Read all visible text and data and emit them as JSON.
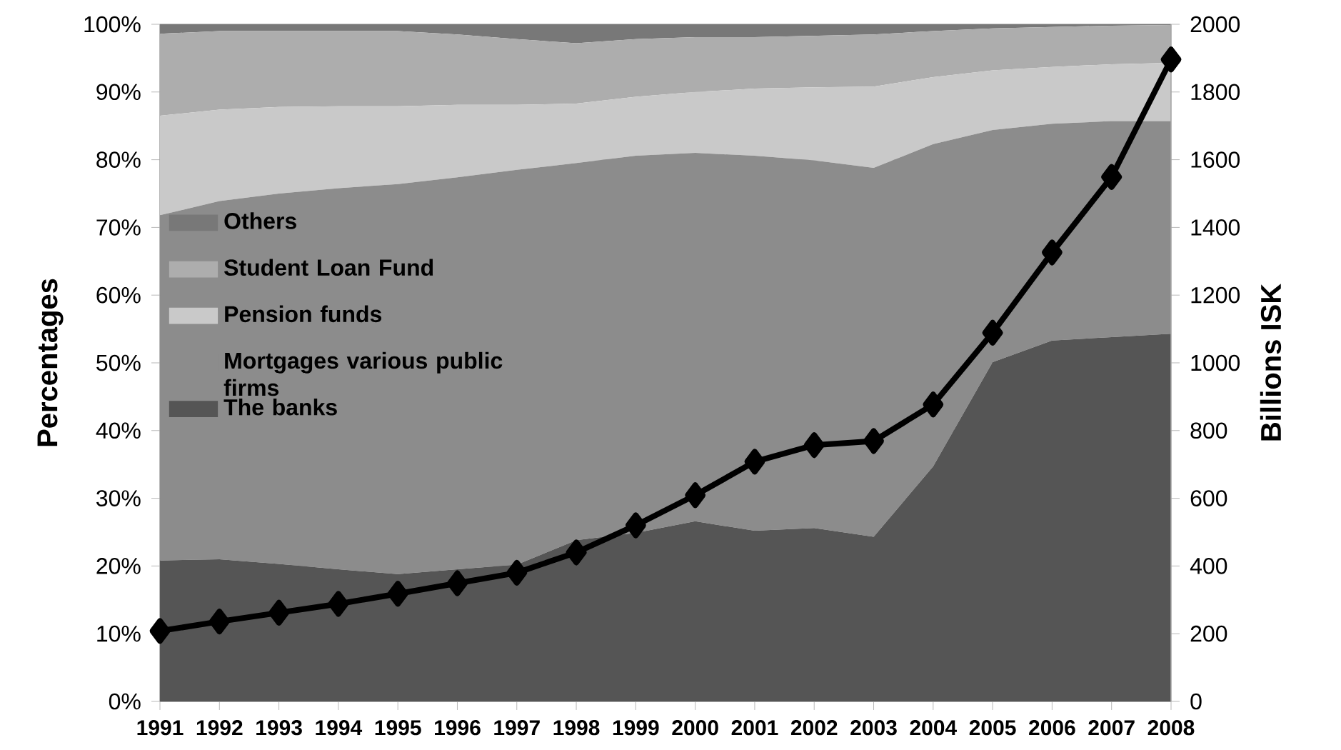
{
  "chart_data": {
    "type": "area",
    "stacked": true,
    "ylabel": "Percentages",
    "y2label": "Billions ISK",
    "categories": [
      "1991",
      "1992",
      "1993",
      "1994",
      "1995",
      "1996",
      "1997",
      "1998",
      "1999",
      "2000",
      "2001",
      "2002",
      "2003",
      "2004",
      "2005",
      "2006",
      "2007",
      "2008"
    ],
    "series": [
      {
        "name": "The banks",
        "color": "#555555",
        "values": [
          20.8,
          21.0,
          20.3,
          19.5,
          18.8,
          19.5,
          20.2,
          23.8,
          24.9,
          26.6,
          25.2,
          25.6,
          24.3,
          34.7,
          50.1,
          53.3,
          53.8,
          54.3
        ]
      },
      {
        "name": "Mortgages various public firms",
        "color": "#8c8c8c",
        "values": [
          51.0,
          52.9,
          54.7,
          56.3,
          57.6,
          57.9,
          58.3,
          55.7,
          55.7,
          54.4,
          55.4,
          54.3,
          54.5,
          47.6,
          34.3,
          32.0,
          31.9,
          31.4
        ]
      },
      {
        "name": "Pension funds",
        "color": "#c9c9c9",
        "values": [
          14.7,
          13.5,
          12.8,
          12.1,
          11.5,
          10.7,
          9.6,
          8.8,
          8.7,
          9.0,
          9.9,
          10.8,
          12.0,
          9.9,
          8.8,
          8.4,
          8.4,
          8.6
        ]
      },
      {
        "name": "Student Loan Fund",
        "color": "#adadad",
        "values": [
          12.1,
          11.6,
          11.2,
          11.1,
          11.1,
          10.4,
          9.7,
          8.9,
          8.5,
          8.1,
          7.6,
          7.6,
          7.7,
          6.8,
          6.2,
          5.9,
          5.7,
          5.6
        ]
      },
      {
        "name": "Others",
        "color": "#787878",
        "values": [
          1.4,
          1.0,
          1.0,
          1.0,
          1.0,
          1.5,
          2.2,
          2.8,
          2.2,
          1.9,
          1.9,
          1.7,
          1.5,
          1.0,
          0.6,
          0.4,
          0.2,
          0.1
        ]
      },
      {
        "type": "line",
        "axis": "y2",
        "color": "#000000",
        "marker": "diamond",
        "line_style": "solid",
        "values": [
          208,
          236,
          262,
          288,
          318,
          349,
          380,
          440,
          520,
          609,
          708,
          757,
          769,
          877,
          1089,
          1326,
          1549,
          1896
        ]
      }
    ],
    "ylim": [
      0,
      100
    ],
    "yticks": [
      {
        "value": 0,
        "label": "0%"
      },
      {
        "value": 10,
        "label": "10%"
      },
      {
        "value": 20,
        "label": "20%"
      },
      {
        "value": 30,
        "label": "30%"
      },
      {
        "value": 40,
        "label": "40%"
      },
      {
        "value": 50,
        "label": "50%"
      },
      {
        "value": 60,
        "label": "60%"
      },
      {
        "value": 70,
        "label": "70%"
      },
      {
        "value": 80,
        "label": "80%"
      },
      {
        "value": 90,
        "label": "90%"
      },
      {
        "value": 100,
        "label": "100%"
      }
    ],
    "y2lim": [
      0,
      2000
    ],
    "y2ticks": [
      0,
      200,
      400,
      600,
      800,
      1000,
      1200,
      1400,
      1600,
      1800,
      2000
    ],
    "grid": "y",
    "legend": "left"
  }
}
